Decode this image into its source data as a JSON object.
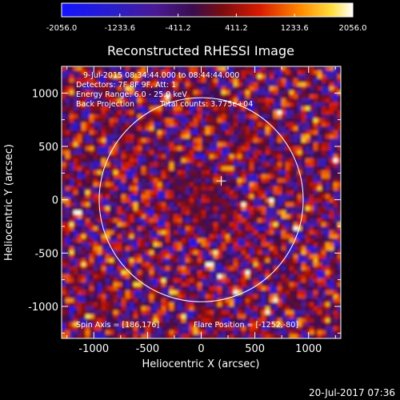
{
  "chart_data": {
    "type": "heatmap",
    "title": "Reconstructed RHESSI Image",
    "xlabel": "Heliocentric X (arcsec)",
    "ylabel": "Heliocentric Y (arcsec)",
    "xlim": [
      -1300,
      1300
    ],
    "ylim": [
      -1300,
      1250
    ],
    "x_ticks": [
      -1000,
      -500,
      0,
      500,
      1000
    ],
    "y_ticks": [
      -1000,
      -500,
      0,
      500,
      1000
    ],
    "colorbar": {
      "min": -2056.0,
      "max": 2056.0,
      "tick_values": [
        -2056.0,
        -1233.6,
        -411.2,
        411.2,
        1233.6,
        2056.0
      ],
      "tick_labels": [
        "-2056.0",
        "-1233.6",
        "-411.2",
        "411.2",
        "1233.6",
        "2056.0"
      ]
    },
    "annotations": [
      "9-Jul-2015 08:34:44.000 to 08:44:44.000",
      "Detectors: 7F 8F 9F, Att: 1",
      "Energy Range: 6.0 - 25.0 keV",
      "Back Projection",
      "Total counts: 3.775e+04",
      "Spin Axis = [186,176]",
      "Flare Position = [-1252,-80]"
    ],
    "solar_limb": {
      "center": [
        0,
        0
      ],
      "radius_arcsec": 950
    },
    "cross_marker": [
      186,
      176
    ],
    "grid": false,
    "colormap": "blue-purple-red-yellow-white"
  },
  "footer": {
    "timestamp": "20-Jul-2017 07:36"
  }
}
